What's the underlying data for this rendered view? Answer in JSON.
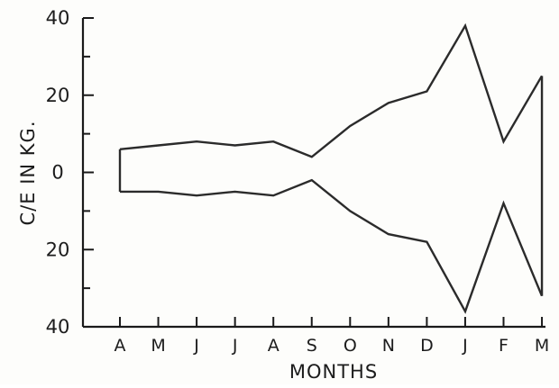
{
  "chart_data": {
    "type": "area",
    "title": "",
    "xlabel": "MONTHS",
    "ylabel": "C/E IN KG.",
    "categories": [
      "A",
      "M",
      "J",
      "J",
      "A",
      "S",
      "O",
      "N",
      "D",
      "J",
      "F",
      "M"
    ],
    "ylim": [
      -40,
      40
    ],
    "y_tick_values": [
      40,
      20,
      0,
      -20,
      -40
    ],
    "y_tick_labels": [
      "40",
      "20",
      "0",
      "20",
      "40"
    ],
    "grid": false,
    "legend": "none",
    "series": [
      {
        "values": [
          6,
          7,
          8,
          7,
          8,
          4,
          12,
          18,
          21,
          38,
          8,
          25
        ]
      },
      {
        "values": [
          -5,
          -5,
          -6,
          -5,
          -6,
          -2,
          -10,
          -16,
          -18,
          -36,
          -8,
          -32
        ]
      }
    ],
    "colors": {
      "line": "#2b2b2b",
      "axis": "#1a1a1a",
      "background": "#fdfdfb"
    }
  }
}
